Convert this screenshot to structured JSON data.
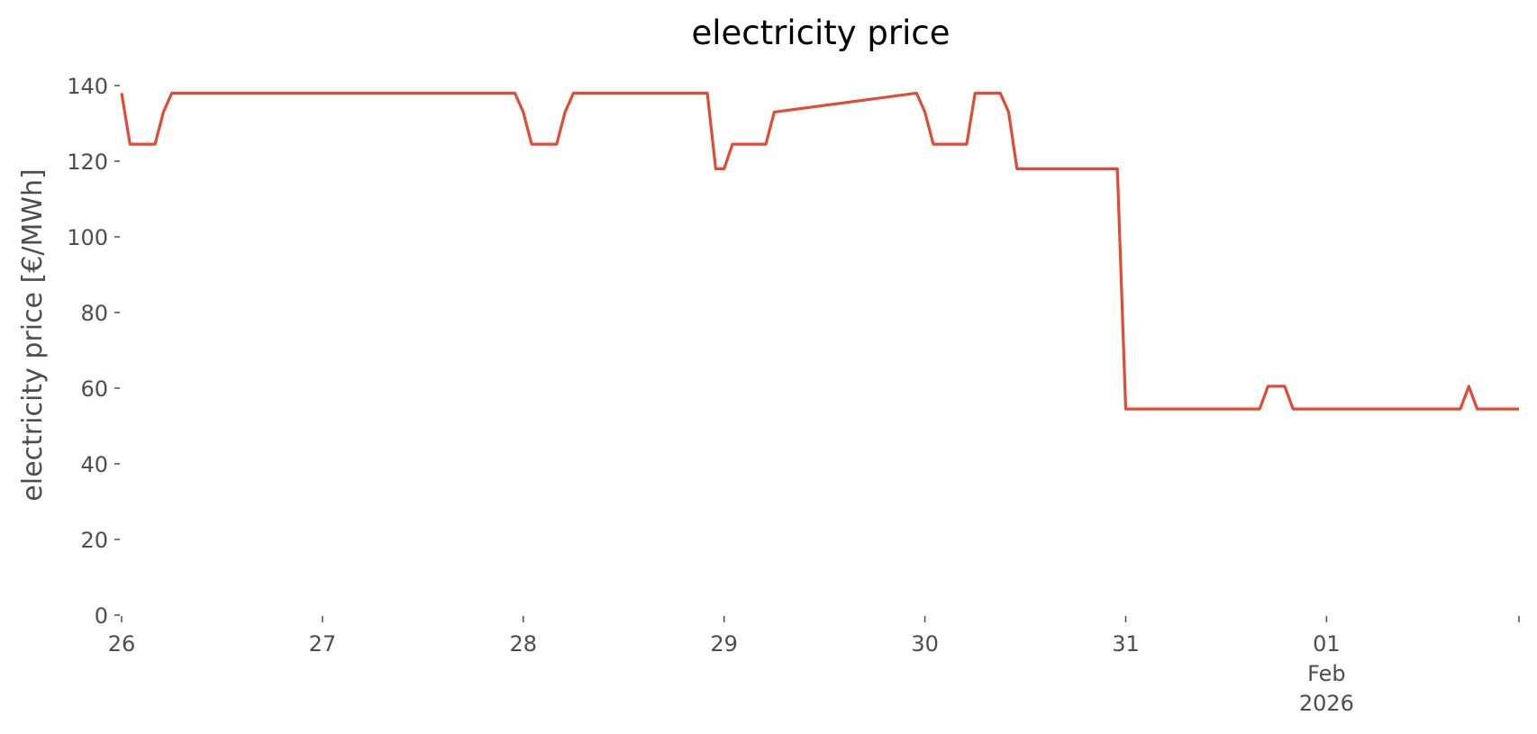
{
  "chart_data": {
    "type": "line",
    "title": "electricity price",
    "xlabel": "",
    "ylabel": "electricity price [€/MWh]",
    "ylim": [
      0,
      140
    ],
    "yticks": [
      0,
      20,
      40,
      60,
      80,
      100,
      120,
      140
    ],
    "xlim": [
      "2026-01-26T00:00",
      "2026-02-01T23:00"
    ],
    "xticks": [
      {
        "x": "2026-01-26T00:00",
        "label": "26"
      },
      {
        "x": "2026-01-27T00:00",
        "label": "27"
      },
      {
        "x": "2026-01-28T00:00",
        "label": "28"
      },
      {
        "x": "2026-01-29T00:00",
        "label": "29"
      },
      {
        "x": "2026-01-30T00:00",
        "label": "30"
      },
      {
        "x": "2026-01-31T00:00",
        "label": "31"
      },
      {
        "x": "2026-02-01T00:00",
        "label": "01\nFeb\n2026"
      }
    ],
    "grid": false,
    "series": [
      {
        "color": "#e24a33",
        "x": [
          "2026-01-26T00:00",
          "2026-01-26T01:00",
          "2026-01-26T02:00",
          "2026-01-26T03:00",
          "2026-01-26T04:00",
          "2026-01-26T05:00",
          "2026-01-26T06:00",
          "2026-01-26T07:00",
          "2026-01-27T23:00",
          "2026-01-28T00:00",
          "2026-01-28T01:00",
          "2026-01-28T02:00",
          "2026-01-28T03:00",
          "2026-01-28T04:00",
          "2026-01-28T05:00",
          "2026-01-28T06:00",
          "2026-01-28T21:00",
          "2026-01-28T22:00",
          "2026-01-28T23:00",
          "2026-01-29T00:00",
          "2026-01-29T01:00",
          "2026-01-29T02:00",
          "2026-01-29T03:00",
          "2026-01-29T04:00",
          "2026-01-29T05:00",
          "2026-01-29T06:00",
          "2026-01-29T23:00",
          "2026-01-30T00:00",
          "2026-01-30T01:00",
          "2026-01-30T02:00",
          "2026-01-30T03:00",
          "2026-01-30T04:00",
          "2026-01-30T05:00",
          "2026-01-30T06:00",
          "2026-01-30T07:00",
          "2026-01-30T08:00",
          "2026-01-30T09:00",
          "2026-01-30T10:00",
          "2026-01-30T11:00",
          "2026-01-30T23:00",
          "2026-01-31T00:00",
          "2026-01-31T16:00",
          "2026-01-31T17:00",
          "2026-01-31T18:00",
          "2026-01-31T19:00",
          "2026-01-31T20:00",
          "2026-02-01T16:00",
          "2026-02-01T17:00",
          "2026-02-01T18:00",
          "2026-02-01T23:00"
        ],
        "values": [
          138,
          124.5,
          124.5,
          124.5,
          124.5,
          133,
          138,
          138,
          138,
          133,
          124.5,
          124.5,
          124.5,
          124.5,
          133,
          138,
          138,
          138,
          118,
          118,
          124.5,
          124.5,
          124.5,
          124.5,
          124.5,
          133,
          138,
          133,
          124.5,
          124.5,
          124.5,
          124.5,
          124.5,
          138,
          138,
          138,
          138,
          133,
          118,
          118,
          54.5,
          54.5,
          60.5,
          60.5,
          60.5,
          54.5,
          54.5,
          60.5,
          54.5,
          54.5
        ]
      }
    ]
  }
}
